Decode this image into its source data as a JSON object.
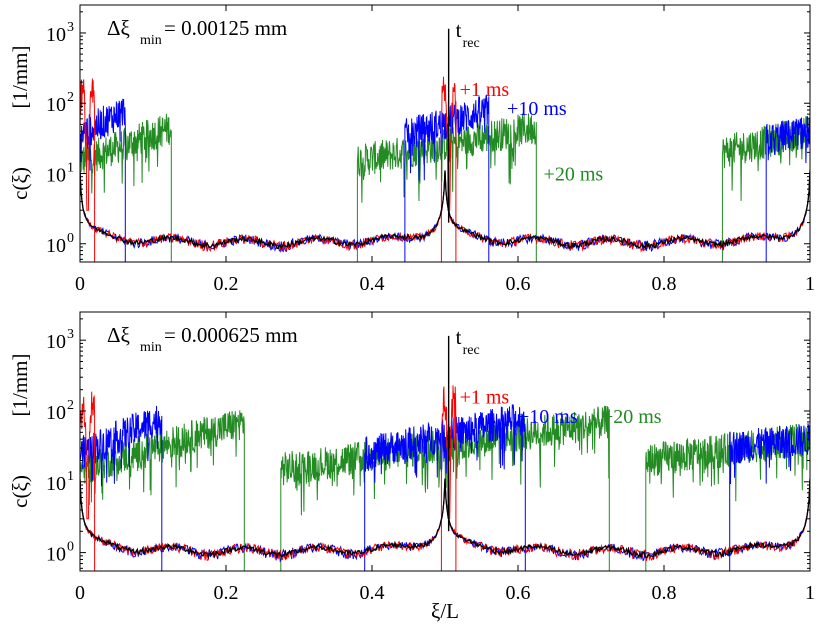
{
  "colors": {
    "red": "#ff0000",
    "blue": "#0000ff",
    "green": "#228b22",
    "black": "#000000"
  },
  "chart_data": [
    {
      "type": "line",
      "title": "",
      "annotation_label": "Δξ",
      "annotation_sub": "min",
      "annotation_value": " = 0.00125 mm",
      "trec_main": "t",
      "trec_sub": "rec",
      "ylabel_main": "c(ξ)",
      "ylabel_units": "[1/mm]",
      "xlabel": "",
      "xlim": [
        0,
        1
      ],
      "ylim": [
        0.55,
        2500
      ],
      "yscale": "log",
      "x_ticks": [
        "0",
        "0.2",
        "0.4",
        "0.6",
        "0.8",
        "1"
      ],
      "y_ticks": [
        "10",
        "10",
        "10",
        "10"
      ],
      "y_tick_exponents": [
        "0",
        "1",
        "2",
        "3"
      ],
      "trec_x": 0.505,
      "series": [
        {
          "name": "+1 ms",
          "color": "red",
          "label_x": 0.52,
          "label_y": 160,
          "segments": [
            [
              0.0,
              0.02,
              90,
              90
            ],
            [
              0.495,
              0.515,
              90,
              90
            ]
          ]
        },
        {
          "name": "+10 ms",
          "color": "blue",
          "label_x": 0.585,
          "label_y": 85,
          "segments": [
            [
              0.0,
              0.062,
              35,
              80
            ],
            [
              0.445,
              0.56,
              35,
              80
            ],
            [
              0.94,
              1.0,
              30,
              40
            ]
          ]
        },
        {
          "name": "+20 ms",
          "color": "green",
          "label_x": 0.635,
          "label_y": 10,
          "segments": [
            [
              0.0,
              0.125,
              15,
              45
            ],
            [
              0.38,
              0.625,
              15,
              45
            ],
            [
              0.88,
              1.0,
              20,
              40
            ]
          ]
        }
      ],
      "baseline_value": 1.0
    },
    {
      "type": "line",
      "title": "",
      "annotation_label": "Δξ",
      "annotation_sub": "min",
      "annotation_value": " = 0.000625 mm",
      "trec_main": "t",
      "trec_sub": "rec",
      "ylabel_main": "c(ξ)",
      "ylabel_units": "[1/mm]",
      "xlabel": "ξ/L",
      "xlim": [
        0,
        1
      ],
      "ylim": [
        0.55,
        2500
      ],
      "yscale": "log",
      "x_ticks": [
        "0",
        "0.2",
        "0.4",
        "0.6",
        "0.8",
        "1"
      ],
      "y_ticks": [
        "10",
        "10",
        "10",
        "10"
      ],
      "y_tick_exponents": [
        "0",
        "1",
        "2",
        "3"
      ],
      "trec_x": 0.505,
      "series": [
        {
          "name": "+1 ms",
          "color": "red",
          "label_x": 0.52,
          "label_y": 160,
          "segments": [
            [
              0.0,
              0.02,
              90,
              90
            ],
            [
              0.495,
              0.515,
              90,
              90
            ]
          ]
        },
        {
          "name": "+10 ms",
          "color": "blue",
          "label_x": 0.6,
          "label_y": 85,
          "segments": [
            [
              0.0,
              0.112,
              25,
              80
            ],
            [
              0.39,
              0.61,
              25,
              80
            ],
            [
              0.89,
              1.0,
              30,
              40
            ]
          ]
        },
        {
          "name": "+20 ms",
          "color": "green",
          "label_x": 0.715,
          "label_y": 85,
          "segments": [
            [
              0.0,
              0.225,
              15,
              70
            ],
            [
              0.275,
              0.725,
              15,
              70
            ],
            [
              0.775,
              1.0,
              20,
              40
            ]
          ]
        }
      ],
      "baseline_value": 1.0
    }
  ]
}
